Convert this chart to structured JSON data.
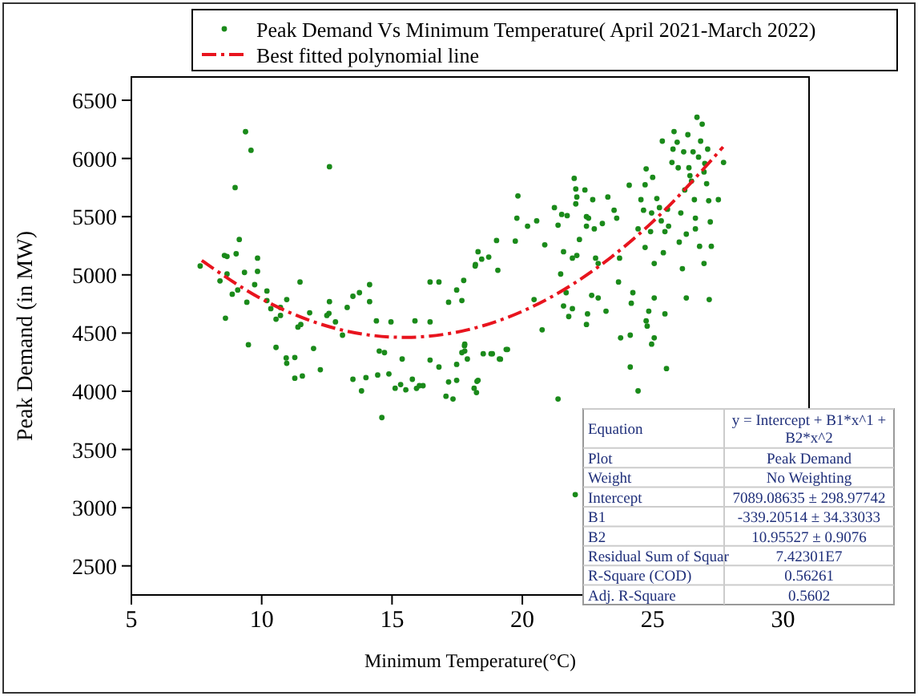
{
  "chart_data": {
    "type": "scatter",
    "xlabel": "Minimum Temperature(°C)",
    "ylabel": "Peak Demand (in MW)",
    "xlim": [
      5,
      31
    ],
    "xticks": [
      5,
      10,
      15,
      20,
      25,
      30
    ],
    "ylim": [
      2250,
      6700
    ],
    "yticks": [
      2500,
      3000,
      3500,
      4000,
      4500,
      5000,
      5500,
      6000,
      6500
    ],
    "grid": false,
    "legend": "top right",
    "series": [
      {
        "name": "Peak Demand Vs Minimum Temperature( April 2021-March 2022)",
        "color": "#1a8a1a",
        "marker": "circle",
        "x": [
          9.38,
          9.59,
          8.98,
          12.6,
          7.64,
          8.4,
          8.57,
          8.67,
          9.02,
          9.14,
          8.67,
          9.34,
          9.84,
          9.84,
          9.73,
          8.87,
          9.08,
          9.43,
          8.61,
          9.49,
          10.2,
          10.2,
          10.35,
          10.72,
          10.55,
          10.72,
          10.96,
          11.47,
          10.55,
          10.94,
          10.96,
          11.27,
          11.27,
          11.56,
          11.39,
          11.5,
          11.84,
          11.99,
          12.25,
          12.5,
          12.6,
          12.58,
          12.83,
          13.1,
          13.28,
          13.5,
          13.75,
          14.14,
          14.14,
          13.5,
          13.83,
          14.0,
          14.4,
          14.96,
          14.51,
          14.71,
          14.45,
          14.88,
          15.12,
          15.33,
          15.39,
          15.78,
          15.88,
          16.05,
          16.46,
          16.46,
          16.8,
          17.17,
          17.75,
          18.2,
          18.3,
          16.46,
          16.8,
          17.17,
          17.07,
          17.34,
          17.79,
          17.79,
          14.61,
          21.37,
          22.03,
          20.76,
          19.43,
          19.16,
          18.8,
          18.26,
          18.24,
          17.48,
          15.53,
          15.94,
          16.19,
          17.68,
          17.48,
          18.19,
          18.44,
          18.71,
          19.01,
          19.06,
          17.78,
          17.68,
          17.89,
          18.5,
          18.85,
          19.12,
          19.38,
          17.48,
          18.3,
          18.15,
          19.73,
          19.79,
          19.83,
          20.2,
          20.55,
          20.45,
          20.86,
          21.23,
          21.37,
          21.51,
          21.47,
          21.58,
          21.72,
          21.99,
          22.05,
          22.09,
          22.05,
          22.19,
          22.09,
          21.92,
          21.68,
          21.58,
          21.92,
          21.78,
          22.4,
          22.46,
          22.46,
          22.54,
          22.7,
          22.76,
          22.81,
          22.91,
          22.66,
          22.91,
          23.07,
          23.28,
          23.21,
          22.5,
          22.46,
          23.52,
          23.62,
          23.73,
          23.69,
          23.77,
          24.14,
          24.14,
          24.44,
          24.1,
          24.18,
          24.24,
          24.44,
          24.55,
          24.71,
          24.75,
          25.0,
          24.65,
          24.71,
          24.75,
          24.79,
          24.96,
          25.06,
          24.85,
          24.92,
          24.96,
          25.06,
          25.06,
          25.16,
          25.26,
          25.37,
          25.41,
          25.47,
          25.53,
          25.33,
          25.47,
          25.57,
          25.61,
          25.74,
          25.78,
          25.82,
          25.94,
          25.98,
          26.02,
          26.08,
          26.14,
          26.19,
          26.23,
          26.29,
          26.35,
          26.39,
          26.43,
          26.49,
          26.55,
          26.6,
          26.64,
          26.7,
          26.76,
          26.8,
          26.84,
          26.9,
          26.97,
          27.0,
          27.07,
          27.11,
          27.15,
          27.21,
          26.97,
          27.17,
          27.25,
          27.52,
          27.72,
          26.64,
          26.29
        ],
        "values": [
          6230,
          6070,
          5750,
          5929,
          5076,
          4948,
          5167,
          5158,
          5181,
          5304,
          5007,
          5021,
          5144,
          5030,
          4916,
          4834,
          4870,
          4765,
          4628,
          4400,
          4861,
          4779,
          4710,
          4720,
          4619,
          4651,
          4788,
          4939,
          4377,
          4286,
          4240,
          4290,
          4112,
          4131,
          4551,
          4574,
          4674,
          4368,
          4185,
          4651,
          4770,
          4669,
          4596,
          4482,
          4720,
          4816,
          4847,
          4916,
          4770,
          4103,
          4003,
          4117,
          4605,
          4596,
          4345,
          4332,
          4140,
          4149,
          4026,
          4058,
          4277,
          4103,
          4605,
          4048,
          4939,
          4596,
          4939,
          4765,
          4952,
          5089,
          5199,
          4268,
          4208,
          4080,
          3957,
          3934,
          4405,
          4345,
          3774,
          3934,
          3112,
          4528,
          4359,
          4276,
          4322,
          4085,
          3989,
          4094,
          4012,
          4025,
          4048,
          4779,
          4870,
          5076,
          5135,
          5153,
          5295,
          5039,
          4391,
          4332,
          4277,
          4322,
          4322,
          4277,
          4359,
          4231,
          4094,
          4026,
          5290,
          5487,
          5678,
          5418,
          5464,
          4788,
          5258,
          5578,
          5427,
          5519,
          5007,
          5199,
          5509,
          5829,
          5738,
          5669,
          5610,
          5304,
          5167,
          5144,
          4847,
          4733,
          4710,
          4642,
          5729,
          5500,
          5418,
          5487,
          5646,
          5395,
          5144,
          5098,
          4824,
          4802,
          5441,
          5669,
          4688,
          4665,
          4574,
          5555,
          5487,
          5144,
          4939,
          4459,
          4482,
          4208,
          4003,
          5770,
          4756,
          4847,
          5395,
          5646,
          5774,
          5911,
          5838,
          5555,
          5236,
          4605,
          4560,
          4405,
          4459,
          4688,
          5372,
          5532,
          5098,
          4802,
          5656,
          5578,
          6149,
          5190,
          4665,
          4195,
          5464,
          5372,
          5564,
          5418,
          5966,
          6080,
          6231,
          6140,
          5920,
          5281,
          5532,
          5053,
          6057,
          5729,
          4802,
          6204,
          5920,
          5852,
          5806,
          6057,
          5646,
          5487,
          6354,
          6012,
          5245,
          6149,
          6295,
          5884,
          5957,
          5783,
          6080,
          5637,
          5455,
          5098,
          4788,
          5245,
          5646,
          5966,
          5395,
          5350
        ]
      },
      {
        "name": "Best fitted polynomial line",
        "type": "line",
        "color": "#e8141e",
        "line_style": "dashed",
        "x": [
          7.7,
          8,
          10,
          12,
          14,
          15.5,
          17,
          19,
          21,
          23,
          25,
          27.7
        ],
        "values": [
          5124,
          5077,
          4793,
          4596,
          4487,
          4463,
          4489,
          4599,
          4797,
          5083,
          5456,
          6099
        ]
      }
    ],
    "annotations": [
      "Equation",
      "y = Intercept + B1*x^1 + B2*x^2",
      "Plot",
      "Peak Demand",
      "Weight",
      "No Weighting",
      "Intercept",
      "7089.08635 ± 298.97742",
      "B1",
      "-339.20514 ± 34.33033",
      "B2",
      "10.95527 ± 0.9076",
      "Residual Sum of Squar",
      "7.42301E7",
      "R-Square (COD)",
      "0.56261",
      "Adj. R-Square",
      "0.5602"
    ]
  }
}
